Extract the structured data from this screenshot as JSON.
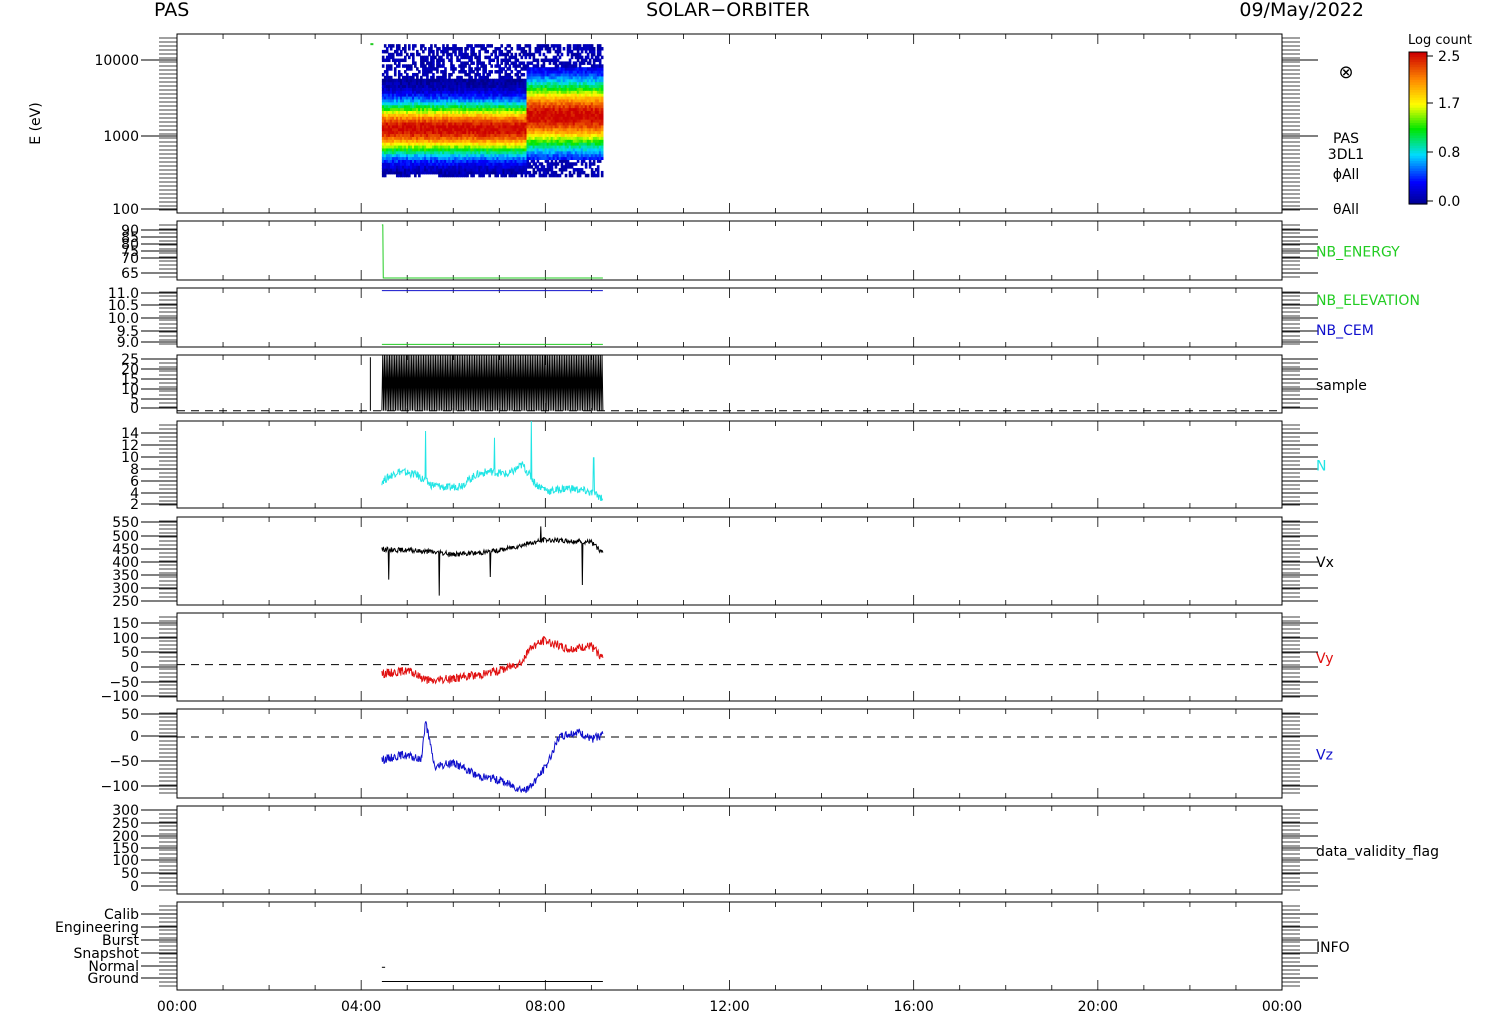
{
  "header": {
    "instrument": "PAS",
    "mission": "SOLAR−ORBITER",
    "date": "09/May/2022"
  },
  "xaxis": {
    "ticklabels": [
      "00:00",
      "04:00",
      "08:00",
      "12:00",
      "16:00",
      "20:00",
      "00:00"
    ],
    "range_hours": [
      0,
      24
    ],
    "data_span_hours": [
      4.4,
      9.3
    ]
  },
  "colorbar": {
    "title": "Log count",
    "ticks": [
      "2.5",
      "1.7",
      "0.8",
      "0.0"
    ],
    "range": [
      0.0,
      2.5
    ],
    "colormap": "rainbow"
  },
  "colors": {
    "green": "#22cc22",
    "blue": "#1010cc",
    "cyan": "#22e5e5",
    "red": "#e01010",
    "black": "#000000"
  },
  "panels": [
    {
      "id": "spectrogram",
      "ylabel": "E (eV)",
      "ticks": [
        "10000",
        "1000",
        "100"
      ],
      "log": true,
      "ylim": [
        100,
        16000
      ],
      "side_labels": [
        {
          "text": "PAS",
          "color": "#000000"
        },
        {
          "text": "3DL1",
          "color": "#000000"
        },
        {
          "text": "ϕAll",
          "color": "#000000"
        },
        {
          "text": "θAll",
          "color": "#000000"
        }
      ],
      "symbol": "⊗"
    },
    {
      "id": "nb-energy",
      "ticks": [
        "90",
        "85",
        "80",
        "75",
        "70",
        "65"
      ],
      "ylim": [
        63,
        93
      ],
      "side_labels": [
        {
          "text": "NB_ENERGY",
          "color": "#22cc22"
        }
      ]
    },
    {
      "id": "nb-elevation-cem",
      "ticks": [
        "11.0",
        "10.5",
        "10.0",
        "9.5",
        "9.0"
      ],
      "ylim": [
        8.9,
        11.1
      ],
      "side_labels": [
        {
          "text": "NB_ELEVATION",
          "color": "#22cc22"
        },
        {
          "text": "NB_CEM",
          "color": "#1010cc"
        }
      ]
    },
    {
      "id": "sample",
      "ticks": [
        "25",
        "20",
        "15",
        "10",
        "5",
        "0"
      ],
      "ylim": [
        -1,
        25
      ],
      "side_labels": [
        {
          "text": "sample",
          "color": "#000000"
        }
      ]
    },
    {
      "id": "density",
      "ticks": [
        "14",
        "12",
        "10",
        "8",
        "6",
        "4",
        "2"
      ],
      "ylim": [
        1.5,
        14.5
      ],
      "side_labels": [
        {
          "text": "N",
          "color": "#22e5e5"
        }
      ]
    },
    {
      "id": "vx",
      "ticks": [
        "550",
        "500",
        "450",
        "400",
        "350",
        "300",
        "250"
      ],
      "ylim": [
        235,
        565
      ],
      "side_labels": [
        {
          "text": "Vx",
          "color": "#000000"
        }
      ]
    },
    {
      "id": "vy",
      "ticks": [
        "150",
        "100",
        "50",
        "0",
        "−50",
        "−100"
      ],
      "ylim": [
        -120,
        170
      ],
      "side_labels": [
        {
          "text": "Vy",
          "color": "#e01010"
        }
      ]
    },
    {
      "id": "vz",
      "ticks": [
        "50",
        "0",
        "−50",
        "−100"
      ],
      "ylim": [
        -120,
        55
      ],
      "side_labels": [
        {
          "text": "Vz",
          "color": "#1010cc"
        }
      ]
    },
    {
      "id": "data-validity",
      "ticks": [
        "300",
        "250",
        "200",
        "150",
        "100",
        "50",
        "0"
      ],
      "ylim": [
        -15,
        315
      ],
      "side_labels": [
        {
          "text": "data_validity_flag",
          "color": "#000000"
        }
      ]
    },
    {
      "id": "info",
      "ticks": [
        "Calib",
        "Engineering",
        "Burst",
        "Snapshot",
        "Normal",
        "Ground"
      ],
      "ylim": [
        -0.6,
        5.6
      ],
      "side_labels": [
        {
          "text": "INFO",
          "color": "#000000"
        }
      ]
    }
  ],
  "chart_data": [
    {
      "type": "heatmap",
      "panel": "spectrogram",
      "xlabel": "",
      "ylabel": "E (eV)",
      "x_range_hours": [
        4.45,
        9.25
      ],
      "y_range_ev": [
        280,
        12000
      ],
      "peak_energy_ev_before_07_30": 1100,
      "peak_energy_ev_after_07_30": 1600,
      "color_scale_log_count": [
        0.0,
        2.5
      ]
    },
    {
      "type": "line",
      "panel": "nb-energy",
      "series": [
        {
          "name": "NB_ENERGY",
          "color": "#22cc22",
          "x": [
            4.45,
            4.47,
            4.48,
            9.25
          ],
          "y": [
            91,
            91,
            64,
            64
          ]
        }
      ]
    },
    {
      "type": "line",
      "panel": "nb-elevation-cem",
      "series": [
        {
          "name": "NB_ELEVATION",
          "color": "#22cc22",
          "x": [
            4.45,
            9.25
          ],
          "y": [
            9.0,
            9.0
          ]
        },
        {
          "name": "NB_CEM",
          "color": "#1010cc",
          "x": [
            4.45,
            9.25
          ],
          "y": [
            11.0,
            11.0
          ]
        }
      ]
    },
    {
      "type": "line",
      "panel": "sample",
      "series": [
        {
          "name": "sample",
          "color": "#000000",
          "x_range": [
            4.45,
            9.25
          ],
          "y_min": 0,
          "y_max": 25
        }
      ],
      "reference_line": 0
    },
    {
      "type": "line",
      "panel": "density",
      "series": [
        {
          "name": "N",
          "color": "#22e5e5",
          "x": [
            4.45,
            4.8,
            5.2,
            5.5,
            5.9,
            6.2,
            6.5,
            6.8,
            7.2,
            7.5,
            7.8,
            8.1,
            8.5,
            8.9,
            9.25
          ],
          "y": [
            5.5,
            7.0,
            6.5,
            5.0,
            4.5,
            5.0,
            6.5,
            7.0,
            6.5,
            8.0,
            5.0,
            4.0,
            4.5,
            4.0,
            3.0
          ],
          "spikes": [
            [
              5.4,
              13
            ],
            [
              6.9,
              12
            ],
            [
              7.7,
              14.5
            ],
            [
              9.05,
              9
            ]
          ]
        }
      ]
    },
    {
      "type": "line",
      "panel": "vx",
      "series": [
        {
          "name": "Vx",
          "color": "#000000",
          "x": [
            4.45,
            5.0,
            5.5,
            6.0,
            6.5,
            7.0,
            7.5,
            8.0,
            8.5,
            9.0,
            9.25
          ],
          "y": [
            445,
            440,
            435,
            425,
            430,
            440,
            460,
            480,
            475,
            470,
            430
          ],
          "spikes": [
            [
              5.7,
              270
            ],
            [
              4.6,
              330
            ],
            [
              6.8,
              340
            ],
            [
              8.8,
              310
            ],
            [
              7.9,
              530
            ]
          ]
        }
      ]
    },
    {
      "type": "line",
      "panel": "vy",
      "series": [
        {
          "name": "Vy",
          "color": "#e01010",
          "x": [
            4.45,
            5.0,
            5.5,
            6.0,
            6.5,
            7.0,
            7.5,
            7.7,
            8.0,
            8.5,
            9.0,
            9.25
          ],
          "y": [
            -30,
            -20,
            -55,
            -45,
            -35,
            -20,
            10,
            60,
            80,
            50,
            60,
            20
          ]
        }
      ],
      "reference_line": 0
    },
    {
      "type": "line",
      "panel": "vz",
      "series": [
        {
          "name": "Vz",
          "color": "#1010cc",
          "x": [
            4.45,
            4.9,
            5.3,
            5.4,
            5.6,
            6.0,
            6.5,
            7.0,
            7.4,
            7.6,
            8.0,
            8.3,
            8.7,
            9.0,
            9.25
          ],
          "y": [
            -45,
            -35,
            -45,
            30,
            -60,
            -50,
            -75,
            -85,
            -100,
            -105,
            -60,
            0,
            10,
            -5,
            5
          ]
        }
      ],
      "reference_line": 0
    },
    {
      "type": "line",
      "panel": "data-validity",
      "series": []
    },
    {
      "type": "line",
      "panel": "info",
      "series": [
        {
          "name": "Normal",
          "color": "#000000",
          "x": [
            4.45,
            4.52
          ],
          "y": [
            1,
            1
          ]
        },
        {
          "name": "Ground",
          "color": "#000000",
          "x": [
            4.45,
            9.25
          ],
          "y": [
            0,
            0
          ]
        }
      ]
    }
  ]
}
